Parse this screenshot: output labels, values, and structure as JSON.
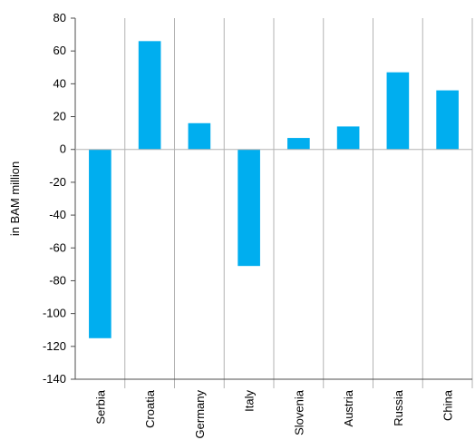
{
  "chart_data": {
    "type": "bar",
    "title": "",
    "xlabel": "",
    "ylabel": "in BAM million",
    "categories": [
      "Serbia",
      "Croatia",
      "Germany",
      "Italy",
      "Slovenia",
      "Austria",
      "Russia",
      "China"
    ],
    "values": [
      -115,
      66,
      16,
      -71,
      7,
      14,
      47,
      36
    ],
    "ylim": [
      -140,
      80
    ],
    "yticks": [
      80,
      60,
      40,
      20,
      0,
      -20,
      -40,
      -60,
      -80,
      -100,
      -120,
      -140
    ],
    "grid": "vertical category separators",
    "legend": "none",
    "bar_color": "#00aeef",
    "axis_color": "#4d4d4d"
  }
}
